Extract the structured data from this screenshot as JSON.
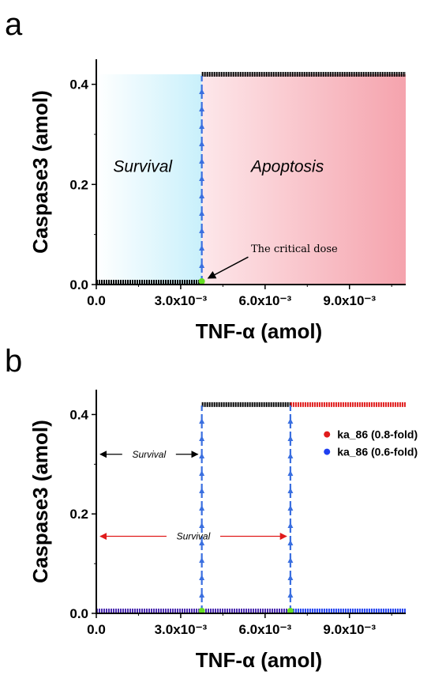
{
  "chart_data": [
    {
      "panel": "a",
      "type": "line",
      "xlabel": "TNF-α  (amol)",
      "ylabel": "Caspase3 (amol)",
      "xlim": [
        0,
        0.011
      ],
      "ylim": [
        0,
        0.45
      ],
      "xticks": [
        0,
        0.003,
        0.006,
        0.009
      ],
      "xtick_labels": [
        "0.0",
        "3.0x10⁻³",
        "6.0x10⁻³",
        "9.0x10⁻³"
      ],
      "yticks": [
        0,
        0.2,
        0.4
      ],
      "ytick_labels": [
        "0.0",
        "0.2",
        "0.4"
      ],
      "critical_dose": 0.00375,
      "series": [
        {
          "color": "#000000",
          "x": [
            0,
            0.00375
          ],
          "y": [
            0.0,
            0.0
          ]
        },
        {
          "color": "#000000",
          "x": [
            0.00375,
            0.011
          ],
          "y": [
            0.42,
            0.42
          ]
        }
      ],
      "regions": [
        {
          "label": "Survival",
          "x": [
            0,
            0.00375
          ],
          "color": "#c9f0fb"
        },
        {
          "label": "Apoptosis",
          "x": [
            0.00375,
            0.011
          ],
          "color": "#f5a3ad"
        }
      ],
      "annotation": "The critical dose"
    },
    {
      "panel": "b",
      "type": "line",
      "xlabel": "TNF-α  (amol)",
      "ylabel": "Caspase3 (amol)",
      "xlim": [
        0,
        0.011
      ],
      "ylim": [
        0,
        0.45
      ],
      "xticks": [
        0,
        0.003,
        0.006,
        0.009
      ],
      "xtick_labels": [
        "0.0",
        "3.0x10⁻³",
        "6.0x10⁻³",
        "9.0x10⁻³"
      ],
      "yticks": [
        0,
        0.2,
        0.4
      ],
      "ytick_labels": [
        "0.0",
        "0.2",
        "0.4"
      ],
      "thresholds": [
        0.00375,
        0.0069
      ],
      "series": [
        {
          "name": "ka_86 (0.8-fold)",
          "color": "#e01b1b",
          "x": [
            0,
            0.00375,
            0.0069,
            0.011
          ],
          "y": [
            0.0,
            0.42,
            0.42,
            0.42
          ]
        },
        {
          "name": "ka_86 (0.6-fold)",
          "color": "#1f3ff0",
          "x": [
            0,
            0.0069,
            0.0069,
            0.011
          ],
          "y": [
            0.0,
            0.0,
            0.42,
            0.0
          ]
        }
      ],
      "survival_labels": [
        "Survival",
        "Survival"
      ],
      "legend_position": "right"
    }
  ]
}
